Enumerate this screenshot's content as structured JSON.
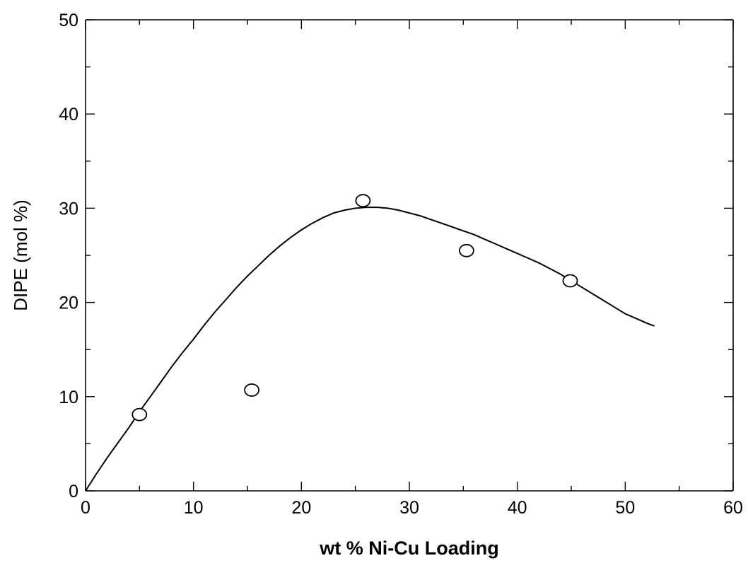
{
  "chart_data": {
    "type": "scatter",
    "title": "",
    "xlabel": "wt % Ni-Cu Loading",
    "ylabel": "DIPE (mol %)",
    "xlim": [
      0,
      60
    ],
    "ylim": [
      0,
      50
    ],
    "x_ticks": [
      0,
      10,
      20,
      30,
      40,
      50,
      60
    ],
    "y_ticks": [
      0,
      10,
      20,
      30,
      40,
      50
    ],
    "grid": false,
    "legend": "none",
    "series": [
      {
        "kind": "markers",
        "marker": "open-circle",
        "x": [
          5,
          15.4,
          25.7,
          35.3,
          44.9
        ],
        "y": [
          8.1,
          10.7,
          30.8,
          25.5,
          22.3
        ]
      },
      {
        "kind": "fitted-curve",
        "x": [
          0,
          1,
          2,
          3,
          4,
          5,
          6,
          7,
          8,
          9,
          10,
          11,
          12,
          13,
          14,
          15,
          16,
          17,
          18,
          19,
          20,
          21,
          22,
          23,
          24,
          25,
          26,
          27,
          28,
          29,
          30,
          31,
          32,
          33,
          34,
          35,
          36,
          37,
          38,
          39,
          40,
          41,
          42,
          43,
          44,
          45,
          46,
          47,
          48,
          49,
          50,
          51,
          52,
          52.7
        ],
        "y": [
          0,
          1.8,
          3.5,
          5.1,
          6.7,
          8.4,
          10.0,
          11.6,
          13.2,
          14.7,
          16.1,
          17.6,
          19.0,
          20.3,
          21.6,
          22.8,
          23.9,
          25.0,
          26.0,
          26.9,
          27.7,
          28.4,
          29.0,
          29.5,
          29.8,
          30.0,
          30.1,
          30.1,
          30.0,
          29.8,
          29.5,
          29.2,
          28.8,
          28.4,
          28.0,
          27.6,
          27.2,
          26.7,
          26.2,
          25.7,
          25.2,
          24.7,
          24.2,
          23.6,
          23.0,
          22.3,
          21.6,
          20.9,
          20.2,
          19.5,
          18.8,
          18.3,
          17.8,
          17.5
        ]
      }
    ]
  }
}
